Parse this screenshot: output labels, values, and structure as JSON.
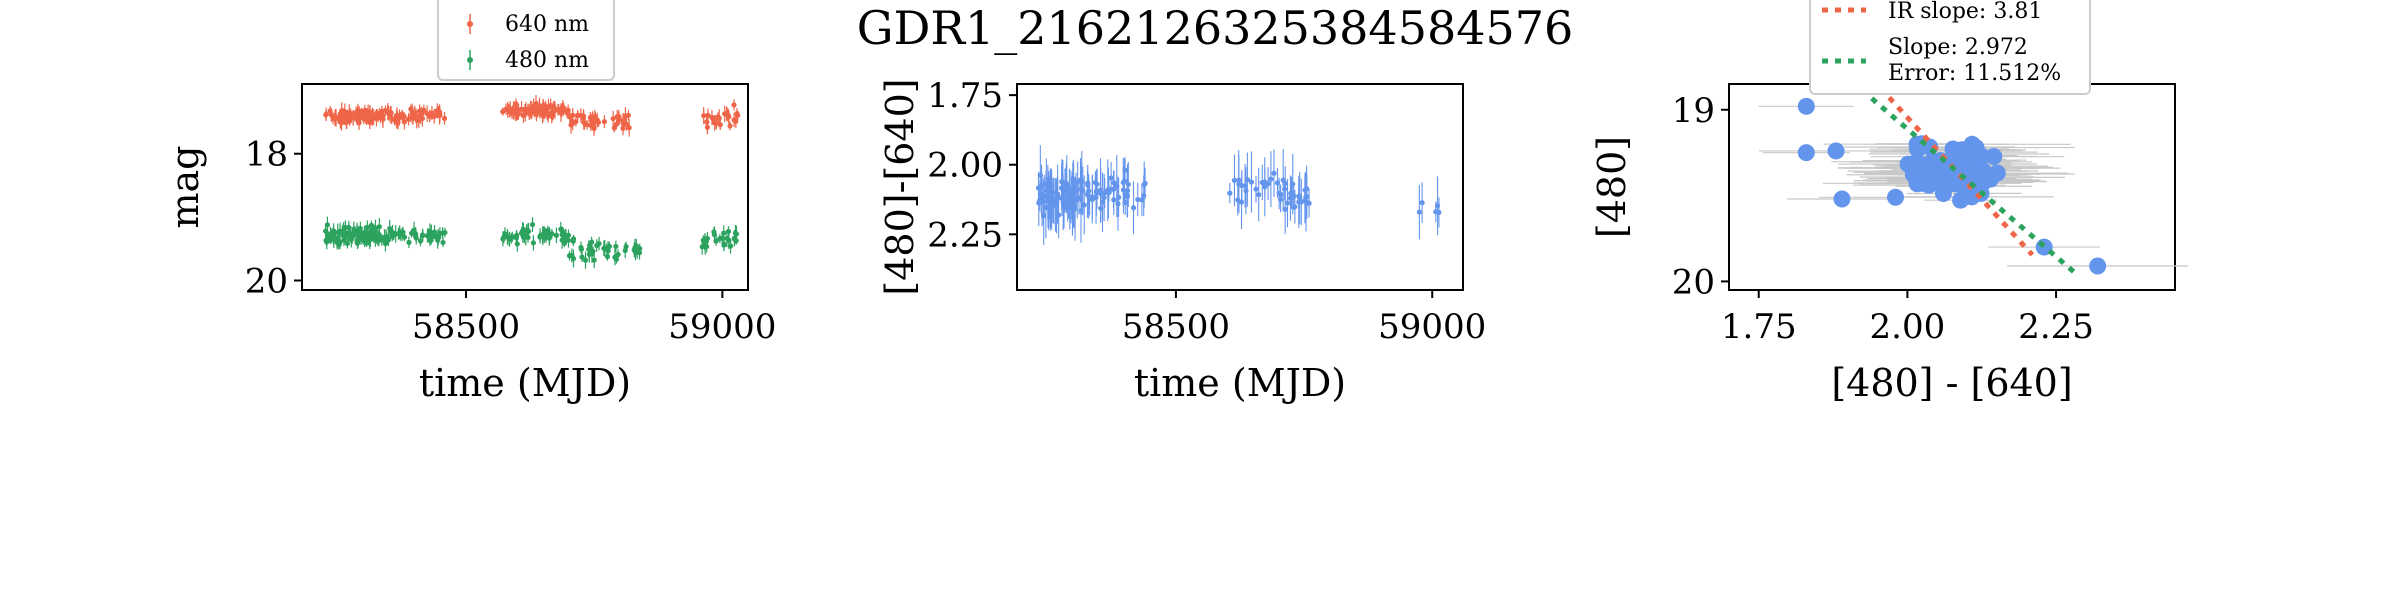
{
  "figure": {
    "title": "GDR1_2162126325384584576"
  },
  "chart_data": [
    {
      "type": "scatter",
      "title": "",
      "xlabel": "time (MJD)",
      "ylabel": "mag",
      "xlim": [
        58180,
        59050
      ],
      "ylim": [
        20.15,
        16.9
      ],
      "y_inverted": true,
      "xticks": [
        58500,
        59000
      ],
      "xtick_labels": [
        "58500",
        "59000"
      ],
      "yticks": [
        18,
        20
      ],
      "ytick_labels": [
        "18",
        "20"
      ],
      "legend_placement": "top-center-outside",
      "series": [
        {
          "name": "640 nm",
          "color": "#ef6548",
          "segments": [
            {
              "x0": 58225,
              "x1": 58330,
              "y": 17.4,
              "spread": 0.14,
              "n": 70
            },
            {
              "x0": 58330,
              "x1": 58460,
              "y": 17.4,
              "spread": 0.14,
              "n": 55
            },
            {
              "x0": 58570,
              "x1": 58700,
              "y": 17.33,
              "spread": 0.14,
              "n": 75
            },
            {
              "x0": 58700,
              "x1": 58820,
              "y": 17.48,
              "spread": 0.16,
              "n": 45
            },
            {
              "x0": 58960,
              "x1": 59030,
              "y": 17.45,
              "spread": 0.2,
              "n": 25
            }
          ]
        },
        {
          "name": "480 nm",
          "color": "#2ca25f",
          "segments": [
            {
              "x0": 58225,
              "x1": 58330,
              "y": 19.3,
              "spread": 0.2,
              "n": 90
            },
            {
              "x0": 58330,
              "x1": 58460,
              "y": 19.3,
              "spread": 0.2,
              "n": 50
            },
            {
              "x0": 58570,
              "x1": 58700,
              "y": 19.3,
              "spread": 0.16,
              "n": 50
            },
            {
              "x0": 58700,
              "x1": 58840,
              "y": 19.52,
              "spread": 0.22,
              "n": 40
            },
            {
              "x0": 58960,
              "x1": 59030,
              "y": 19.35,
              "spread": 0.22,
              "n": 25
            }
          ]
        }
      ]
    },
    {
      "type": "scatter",
      "title": "",
      "xlabel": "time (MJD)",
      "ylabel": "[480]-[640]",
      "xlim": [
        58190,
        59060
      ],
      "ylim": [
        2.45,
        1.71
      ],
      "y_inverted": true,
      "xticks": [
        58500,
        59000
      ],
      "xtick_labels": [
        "58500",
        "59000"
      ],
      "yticks": [
        1.75,
        2.0,
        2.25
      ],
      "ytick_labels": [
        "1.75",
        "2.00",
        "2.25"
      ],
      "series": [
        {
          "name": "",
          "color": "#6495ed",
          "segments": [
            {
              "x0": 58230,
              "x1": 58330,
              "y": 2.11,
              "spread": 0.09,
              "n": 90
            },
            {
              "x0": 58330,
              "x1": 58440,
              "y": 2.1,
              "spread": 0.08,
              "n": 40
            },
            {
              "x0": 58600,
              "x1": 58700,
              "y": 2.07,
              "spread": 0.07,
              "n": 20
            },
            {
              "x0": 58700,
              "x1": 58760,
              "y": 2.12,
              "spread": 0.07,
              "n": 25
            },
            {
              "x0": 58970,
              "x1": 59020,
              "y": 2.15,
              "spread": 0.04,
              "n": 5
            }
          ]
        }
      ]
    },
    {
      "type": "scatter",
      "title": "",
      "xlabel": "[480] - [640]",
      "ylabel": "[480]",
      "xlim": [
        1.7,
        2.45
      ],
      "ylim": [
        20.05,
        18.85
      ],
      "y_inverted": true,
      "xticks": [
        1.75,
        2.0,
        2.25
      ],
      "xtick_labels": [
        "1.75",
        "2.00",
        "2.25"
      ],
      "yticks": [
        19,
        20
      ],
      "ytick_labels": [
        "19",
        "20"
      ],
      "legend_placement": "top-center",
      "legend_entries": [
        "IR slope: 3.81",
        "Slope: 2.972",
        "Error: 11.512%"
      ],
      "points": {
        "color": "#6495ed",
        "errorbar_color": "#c8c8c8",
        "fixed": [
          [
            1.83,
            18.98
          ],
          [
            1.83,
            19.25
          ],
          [
            1.88,
            19.24
          ],
          [
            1.89,
            19.52
          ],
          [
            1.98,
            19.51
          ],
          [
            2.23,
            19.8
          ],
          [
            2.32,
            19.91
          ]
        ],
        "cloud": {
          "x": 2.08,
          "y": 19.35,
          "sx": 0.08,
          "sy": 0.15,
          "n": 90
        }
      },
      "fit_lines": [
        {
          "name": "IR slope: 3.81",
          "color": "#ef6548",
          "slope": 3.81,
          "x0": 1.94,
          "x1": 2.21,
          "through": [
            2.08,
            19.35
          ]
        },
        {
          "name": "Slope: 2.972",
          "color": "#2ca25f",
          "slope": 2.972,
          "x0": 1.94,
          "x1": 2.28,
          "through": [
            2.08,
            19.35
          ]
        }
      ]
    }
  ]
}
